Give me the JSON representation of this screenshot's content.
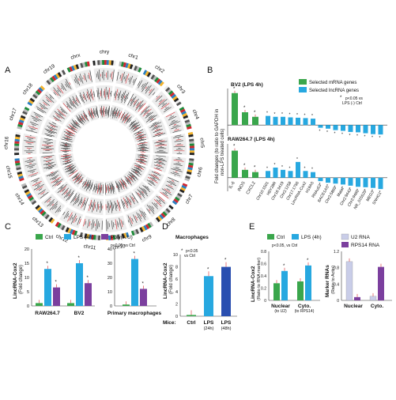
{
  "panels": {
    "A": {
      "label": "A",
      "chromosomes": [
        "chry",
        "chr1",
        "chr2",
        "chr3",
        "chr4",
        "chr5",
        "chr6",
        "chr7",
        "chr8",
        "chr9",
        "chr10",
        "chr11",
        "chr12",
        "chr13",
        "chr14",
        "chr15",
        "chr16",
        "chr17",
        "chr18",
        "chr19",
        "chrx"
      ]
    },
    "B": {
      "label": "B",
      "ylabel_1": "Fold changes (to ratio to GAPDH in",
      "ylabel_2": "non-LPS treated cells)",
      "legend": [
        {
          "name": "Selected mRNA genes",
          "color": "#3aa64c"
        },
        {
          "name": "Selected lncRNA genes",
          "color": "#27a8e0"
        }
      ],
      "note_1": "p<0.05 vs",
      "note_2": "LPS (-) Ctrl"
    },
    "C": {
      "label": "C"
    },
    "D": {
      "label": "D"
    },
    "E": {
      "label": "E"
    }
  },
  "colors": {
    "ctrl": "#3aa64c",
    "lps": "#27a8e0",
    "polyic": "#7b3f9e",
    "u2": "#c9cde8",
    "rps14": "#7b3f9e",
    "error": "#d7282f"
  },
  "chart_data": [
    {
      "panel": "B-top",
      "type": "bar",
      "title": "BV2 (LPS 4h)",
      "categories": [
        "IL-6",
        "iNOS",
        "CXCL2"
      ],
      "values": [
        17.5,
        7.0,
        4.5
      ],
      "lnc_values": [
        5.0,
        4.5,
        4.5,
        4.2,
        4.0,
        3.8,
        3.5,
        -1.5,
        -2.0,
        -2.8,
        -3.2,
        -3.8,
        -4.0,
        -4.5,
        -5.0,
        -5.2
      ],
      "ylim": [
        -6,
        20
      ]
    },
    {
      "panel": "B-bottom",
      "type": "bar",
      "title": "RAW264.7 (LPS 4h)",
      "categories": [
        "IL-6",
        "iNOS",
        "CXCL2"
      ],
      "values": [
        12.0,
        3.5,
        2.5
      ],
      "lnc_categories": [
        "Chr10:1501",
        "H8Y28R",
        "Chr16:3419",
        "Chr3:1258",
        "Chr17:1756",
        "LincRNA-Cox2",
        "H19AS",
        "RNAu53",
        "BACE1AS",
        "Chr2:5865",
        "Malat",
        "Chr2:9443",
        "Chr2:9465",
        "NR_015525",
        "MEG3",
        "SNHG1"
      ],
      "lnc_values": [
        3.0,
        4.5,
        3.5,
        3.0,
        7.0,
        3.0,
        2.5,
        -1.5,
        -2.2,
        -2.6,
        -3.0,
        -3.5,
        -4.0,
        -4.2,
        -4.5,
        -5.0
      ],
      "ylim": [
        -6,
        15
      ]
    },
    {
      "panel": "C",
      "type": "bar",
      "ylabel": "LincRNA-Cox2",
      "ylabel2": "(Fold change)",
      "legend": [
        "Ctrl",
        "LPS (4h)",
        "Poly(A:U)"
      ],
      "note": "p<0.05 vs Ctrl",
      "groups": [
        {
          "label": "RAW264.7",
          "values": [
            1,
            13,
            6.5
          ],
          "ylim": [
            0,
            20
          ],
          "ticks": [
            "0",
            "5",
            "10",
            "15",
            "20"
          ]
        },
        {
          "label": "BV2",
          "values": [
            1,
            15,
            8
          ],
          "ylim": [
            0,
            20
          ],
          "ticks": []
        },
        {
          "label": "Primary macrophages",
          "values": [
            1,
            33,
            12
          ],
          "ylim": [
            0,
            40
          ],
          "ticks": [
            "0",
            "10",
            "20",
            "30",
            "40"
          ]
        }
      ]
    },
    {
      "panel": "D",
      "type": "bar",
      "title": "Macrophages",
      "ylabel": "LincRNA-Cox2",
      "ylabel2": "(Fold change)",
      "note_1": "p<0.05",
      "note_2": "vs Ctrl",
      "mice_label": "Mice:",
      "categories": [
        "Ctrl",
        "LPS",
        "LPS"
      ],
      "sublabels": [
        "",
        "(24h)",
        "(48h)"
      ],
      "values": [
        0.2,
        6.5,
        8.0
      ],
      "ylim": [
        0,
        10
      ],
      "ticks": [
        "0",
        "2",
        "4",
        "6",
        "8",
        "10"
      ]
    },
    {
      "panel": "E-left",
      "type": "bar",
      "ylabel": "LincRNA-Cox2",
      "ylabel2": "(Ratio to RNA marker)",
      "legend": [
        "Ctrl",
        "LPS (4h)"
      ],
      "note": "p<0.05, vs Ctrl",
      "categories": [
        "Nuclear",
        "Cyto."
      ],
      "sublabels": [
        "(to U2)",
        "(to RPS14)"
      ],
      "series": [
        {
          "name": "Ctrl",
          "values": [
            0.28,
            0.31
          ]
        },
        {
          "name": "LPS (4h)",
          "values": [
            0.48,
            0.57
          ]
        }
      ],
      "ylim": [
        0,
        0.8
      ],
      "ticks": [
        "0",
        "0.2",
        "0.4",
        "0.6",
        "0.8"
      ]
    },
    {
      "panel": "E-right",
      "type": "bar",
      "ylabel": "Marker RNAs",
      "ylabel2": "(Ratio to Actin)",
      "legend": [
        "U2 RNA",
        "RPS14 RNA"
      ],
      "categories": [
        "Nuclear",
        "Cyto."
      ],
      "series": [
        {
          "name": "U2 RNA",
          "values": [
            0.95,
            0.1
          ]
        },
        {
          "name": "RPS14 RNA",
          "values": [
            0.08,
            0.82
          ]
        }
      ],
      "ylim": [
        0,
        1.2
      ],
      "ticks": [
        "0",
        "0.4",
        "0.8",
        "1.2"
      ]
    }
  ]
}
